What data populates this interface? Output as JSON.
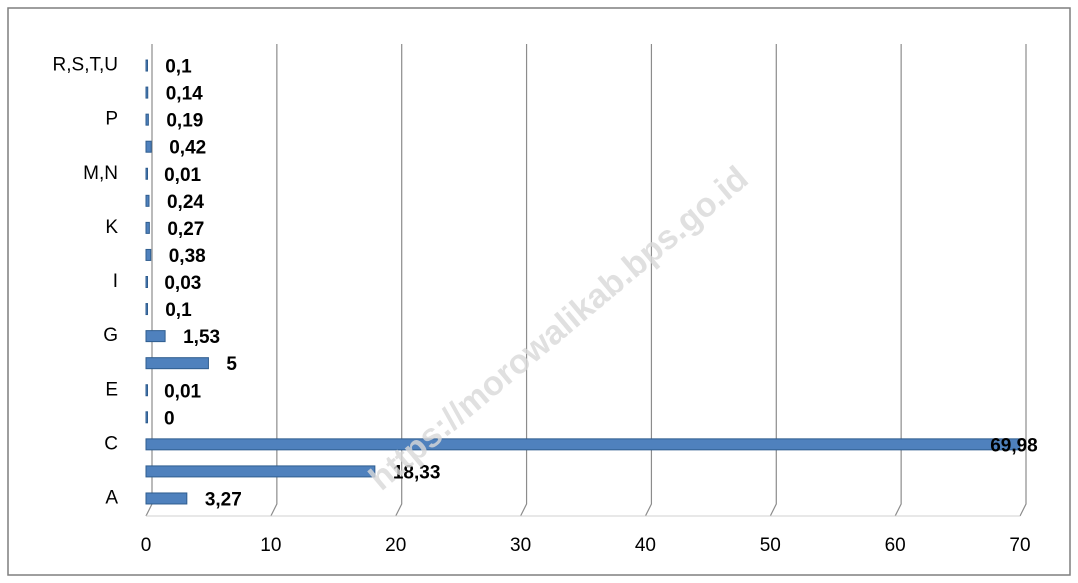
{
  "chart_data": {
    "type": "bar",
    "orientation": "horizontal",
    "categories": [
      "A",
      null,
      "C",
      null,
      "E",
      null,
      "G",
      null,
      "I",
      null,
      "K",
      null,
      "M,N",
      null,
      "P",
      null,
      "R,S,T,U"
    ],
    "values": [
      3.27,
      18.33,
      69.98,
      0,
      0.01,
      5,
      1.53,
      0.1,
      0.03,
      0.38,
      0.27,
      0.24,
      0.01,
      0.42,
      0.19,
      0.14,
      0.1
    ],
    "value_labels": [
      "3,27",
      "18,33",
      "69,98",
      "0",
      "0,01",
      "5",
      "1,53",
      "0,1",
      "0,03",
      "0,38",
      "0,27",
      "0,24",
      "0,01",
      "0,42",
      "0,19",
      "0,14",
      "0,1"
    ],
    "color": "#4f81bd",
    "xlim": [
      0,
      70
    ],
    "xticks": [
      0,
      10,
      20,
      30,
      40,
      50,
      60,
      70
    ],
    "grid": true,
    "watermark": "https://morowalikab.bps.go.id"
  }
}
